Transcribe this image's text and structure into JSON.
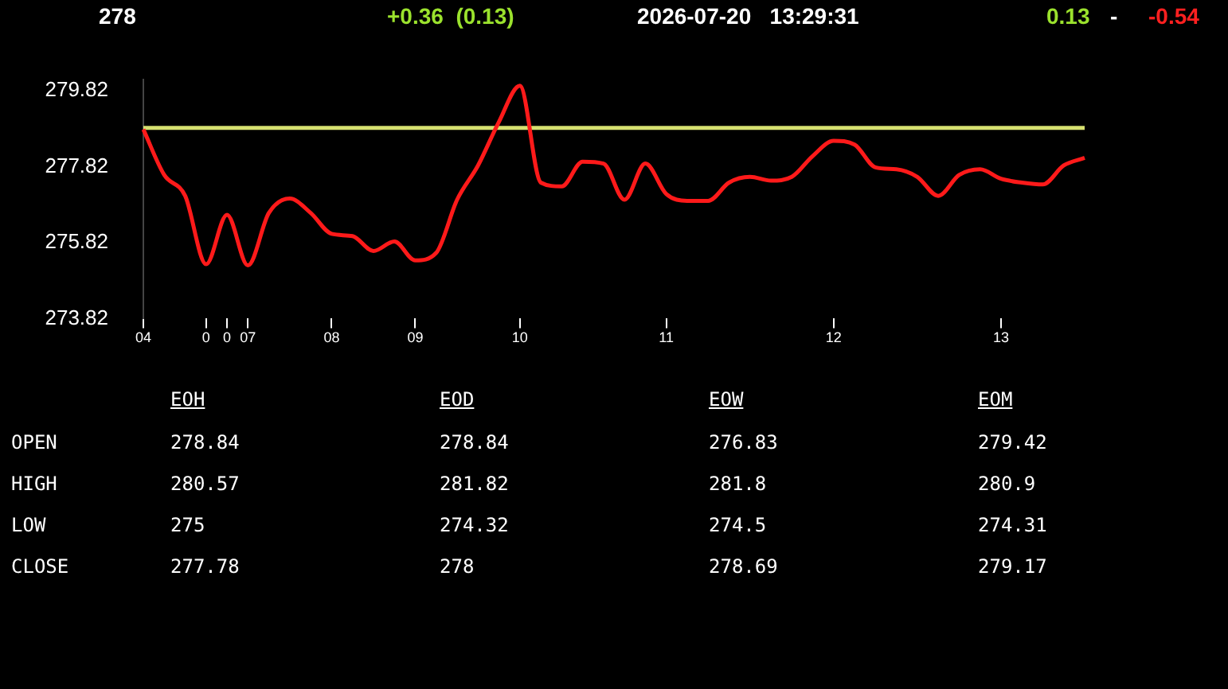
{
  "chart_data": [
    {
      "type": "line",
      "annotations": [
        "278",
        "+0.36  (0.13)",
        "2026-07-20   13:29:31",
        "0.13",
        "-",
        "-0.54"
      ],
      "categories": [
        "04",
        null,
        null,
        "0",
        "0",
        "07",
        null,
        null,
        null,
        "08",
        null,
        null,
        null,
        "09",
        null,
        null,
        null,
        null,
        "10",
        null,
        null,
        null,
        null,
        null,
        null,
        "11",
        null,
        null,
        null,
        null,
        null,
        null,
        null,
        "12",
        null,
        null,
        null,
        null,
        null,
        null,
        null,
        "13",
        null,
        null,
        null,
        null
      ],
      "series": [
        {
          "color": "#ff1a1a",
          "values": [
            278.8,
            277.6,
            277.05,
            275.25,
            276.55,
            275.22,
            276.6,
            276.98,
            276.6,
            276.05,
            275.99,
            275.6,
            275.85,
            275.35,
            275.55,
            276.95,
            277.85,
            279.0,
            279.95,
            277.4,
            277.3,
            277.95,
            277.9,
            276.95,
            277.9,
            277.1,
            276.92,
            276.92,
            277.4,
            277.55,
            277.45,
            277.55,
            278.1,
            278.5,
            278.4,
            277.8,
            277.75,
            277.55,
            277.05,
            277.6,
            277.75,
            277.5,
            277.4,
            277.35,
            277.85,
            278.05
          ]
        }
      ],
      "ylim": [
        273.82,
        280.12
      ],
      "yticks": [
        273.82,
        275.82,
        277.82,
        279.82
      ],
      "marker": "none",
      "ref_lines": [
        {
          "axis": "y",
          "value": 278.84,
          "color": "#d6e070"
        }
      ]
    },
    {
      "type": "other",
      "annotations": [
        "EOH",
        "EOD",
        "EOW",
        "EOM",
        "OPEN",
        "278.84",
        "278.84",
        "276.83",
        "279.42",
        "HIGH",
        "280.57",
        "281.82",
        "281.8",
        "280.9",
        "LOW",
        "275",
        "274.32",
        "274.5",
        "274.31",
        "CLOSE",
        "277.78",
        "278",
        "278.69",
        "279.17"
      ]
    }
  ]
}
